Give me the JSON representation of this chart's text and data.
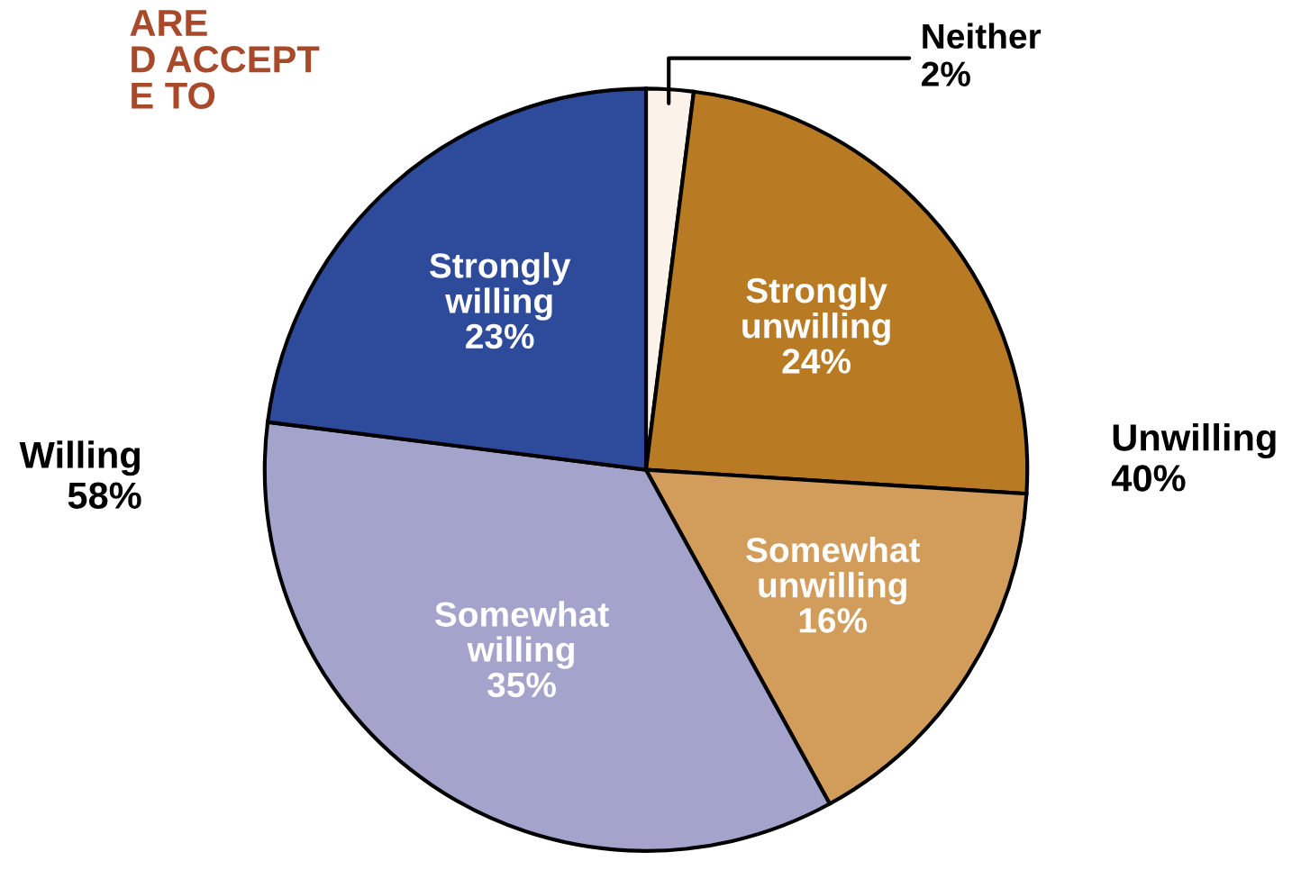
{
  "chart_data": {
    "type": "pie",
    "title": "ARE\nD ACCEPT\nE TO",
    "categories": [
      "Neither",
      "Strongly\nunwilling",
      "Somewhat\nunwilling",
      "Somewhat\nwilling",
      "Strongly\nwilling"
    ],
    "values": [
      2,
      24,
      16,
      35,
      23
    ],
    "value_labels": [
      "2%",
      "24%",
      "16%",
      "35%",
      "23%"
    ],
    "colors": [
      "#fbf3ea",
      "#b87a22",
      "#d29c5a",
      "#a4a3cc",
      "#2e4a9a"
    ],
    "annotations": [
      "Willing\n58%",
      "Unwilling\n40%"
    ]
  }
}
